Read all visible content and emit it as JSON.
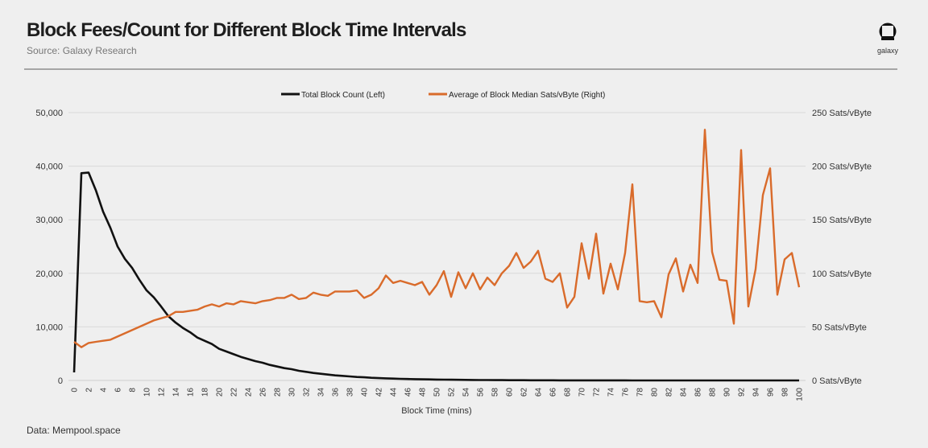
{
  "header": {
    "title": "Block Fees/Count for Different Block Time Intervals",
    "subtitle": "Source: Galaxy Research",
    "logo_text": "galaxy"
  },
  "footer": {
    "data_source": "Data: Mempool.space"
  },
  "colors": {
    "count_line": "#111111",
    "fee_line": "#d96b2b",
    "grid": "#d9d9d9",
    "background": "#efefef"
  },
  "chart_data": {
    "type": "line",
    "title": "Block Fees/Count for Different Block Time Intervals",
    "xlabel": "Block Time (mins)",
    "ylabel_left": "",
    "ylabel_right": "",
    "xlim": [
      0,
      100
    ],
    "ylim_left": [
      0,
      50000
    ],
    "ylim_right": [
      0,
      250
    ],
    "grid": true,
    "legend_position": "top-center",
    "x_tick_labels": [
      "0",
      "2",
      "4",
      "6",
      "8",
      "10",
      "12",
      "14",
      "16",
      "18",
      "20",
      "22",
      "24",
      "26",
      "28",
      "30",
      "32",
      "34",
      "36",
      "38",
      "40",
      "42",
      "44",
      "46",
      "48",
      "50",
      "52",
      "54",
      "56",
      "58",
      "60",
      "62",
      "64",
      "66",
      "68",
      "70",
      "72",
      "74",
      "76",
      "78",
      "80",
      "82",
      "84",
      "86",
      "88",
      "90",
      "92",
      "94",
      "96",
      "98",
      "100"
    ],
    "y_left_tick_labels": [
      "0",
      "10,000",
      "20,000",
      "30,000",
      "40,000",
      "50,000"
    ],
    "y_left_tick_values": [
      0,
      10000,
      20000,
      30000,
      40000,
      50000
    ],
    "y_right_tick_labels": [
      "0 Sats/vByte",
      "50 Sats/vByte",
      "100 Sats/vByte",
      "150 Sats/vByte",
      "200 Sats/vByte",
      "250 Sats/vByte"
    ],
    "y_right_tick_values": [
      0,
      50,
      100,
      150,
      200,
      250
    ],
    "series": [
      {
        "name": "Total Block Count (Left)",
        "axis": "left",
        "values": [
          1500,
          38700,
          38800,
          35500,
          31500,
          28500,
          25000,
          22700,
          21000,
          18800,
          16800,
          15500,
          13800,
          12000,
          10800,
          9800,
          9000,
          8000,
          7400,
          6800,
          5900,
          5400,
          4900,
          4400,
          4000,
          3600,
          3300,
          2900,
          2600,
          2300,
          2100,
          1800,
          1600,
          1400,
          1250,
          1100,
          950,
          850,
          750,
          650,
          580,
          500,
          440,
          390,
          340,
          300,
          270,
          240,
          210,
          190,
          170,
          150,
          130,
          115,
          100,
          90,
          80,
          70,
          60,
          55,
          50,
          45,
          40,
          36,
          32,
          28,
          25,
          22,
          20,
          18,
          16,
          14,
          12,
          11,
          10,
          9,
          8,
          7,
          6,
          6,
          5,
          5,
          4,
          4,
          3,
          3,
          3,
          2,
          2,
          2,
          2,
          2,
          1,
          1,
          1,
          1,
          1,
          1,
          1,
          1,
          1
        ]
      },
      {
        "name": "Average of Block Median Sats/vByte (Right)",
        "axis": "right",
        "values": [
          36,
          31,
          35,
          36,
          37,
          38,
          41,
          44,
          47,
          50,
          53,
          56,
          58,
          60,
          64,
          64,
          65,
          66,
          69,
          71,
          69,
          72,
          71,
          74,
          73,
          72,
          74,
          75,
          77,
          77,
          80,
          76,
          77,
          82,
          80,
          79,
          83,
          83,
          83,
          84,
          77,
          80,
          86,
          98,
          91,
          93,
          91,
          89,
          92,
          80,
          89,
          102,
          78,
          101,
          86,
          100,
          85,
          96,
          89,
          100,
          107,
          119,
          105,
          111,
          121,
          95,
          92,
          100,
          68,
          78,
          128,
          95,
          137,
          81,
          109,
          85,
          119,
          183,
          74,
          73,
          74,
          59,
          99,
          114,
          83,
          108,
          91,
          234,
          120,
          94,
          93,
          53,
          215,
          69,
          104,
          173,
          198,
          80,
          113,
          119,
          87
        ]
      }
    ]
  }
}
